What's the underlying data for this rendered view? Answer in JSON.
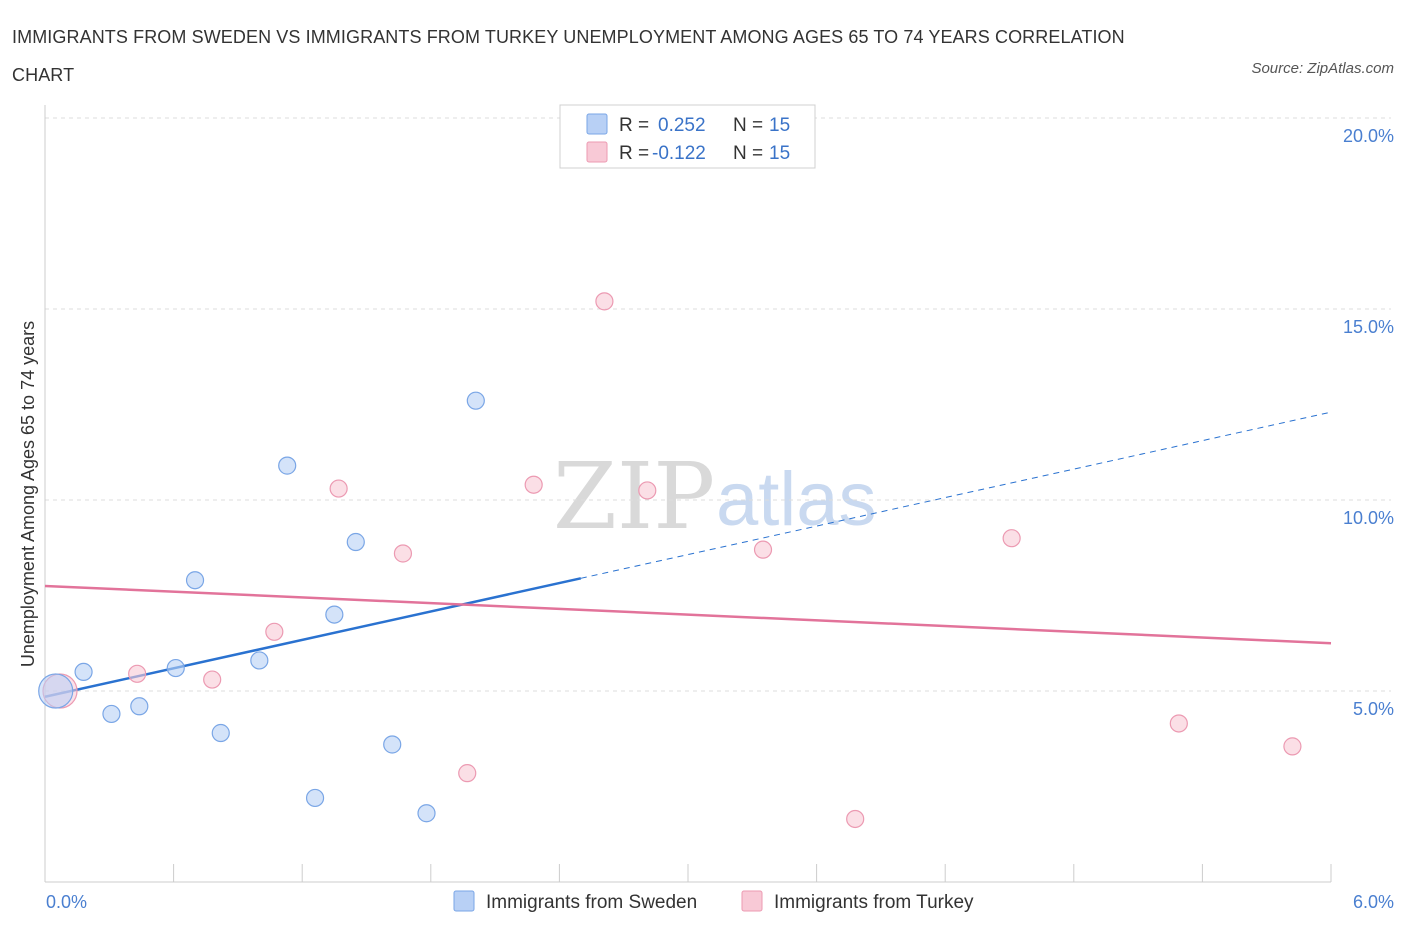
{
  "title": "IMMIGRANTS FROM SWEDEN VS IMMIGRANTS FROM TURKEY UNEMPLOYMENT AMONG AGES 65 TO 74 YEARS CORRELATION CHART",
  "source": "Source: ZipAtlas.com",
  "watermark": {
    "zip": "ZIP",
    "atlas": "atlas"
  },
  "colors": {
    "sweden_fill": "#b8d0f5",
    "sweden_stroke": "#7aa6e6",
    "sweden_line": "#2a72d0",
    "turkey_fill": "#f8c9d6",
    "turkey_stroke": "#ec9ab2",
    "turkey_line": "#e2739a",
    "tick_label": "#4a7fd0",
    "grid": "#dddddd"
  },
  "legend": {
    "rows": [
      {
        "r_label": "R =",
        "r_value": "0.252",
        "n_label": "N =",
        "n_value": "15"
      },
      {
        "r_label": "R =",
        "r_value": "-0.122",
        "n_label": "N =",
        "n_value": "15"
      }
    ]
  },
  "chart_data": {
    "type": "scatter",
    "title": "IMMIGRANTS FROM SWEDEN VS IMMIGRANTS FROM TURKEY UNEMPLOYMENT AMONG AGES 65 TO 74 YEARS CORRELATION CHART",
    "xlabel": "",
    "ylabel": "Unemployment Among Ages 65 to 74 years",
    "xlim": [
      0,
      6
    ],
    "ylim": [
      0,
      20
    ],
    "x_tick_labels": [
      "0.0%",
      "6.0%"
    ],
    "y_ticks": [
      5,
      10,
      15,
      20
    ],
    "y_tick_labels": [
      "5.0%",
      "10.0%",
      "15.0%",
      "20.0%"
    ],
    "grid": true,
    "legend_position": "top-center",
    "series": [
      {
        "name": "Immigrants from Sweden",
        "color": "#7aa6e6",
        "points": [
          {
            "x": 0.05,
            "y": 5.0,
            "big": true
          },
          {
            "x": 0.18,
            "y": 5.5
          },
          {
            "x": 0.31,
            "y": 4.4
          },
          {
            "x": 0.44,
            "y": 4.6
          },
          {
            "x": 0.61,
            "y": 5.6
          },
          {
            "x": 0.7,
            "y": 7.9
          },
          {
            "x": 0.82,
            "y": 3.9
          },
          {
            "x": 1.0,
            "y": 5.8
          },
          {
            "x": 1.13,
            "y": 10.9
          },
          {
            "x": 1.26,
            "y": 2.2
          },
          {
            "x": 1.35,
            "y": 7.0
          },
          {
            "x": 1.45,
            "y": 8.9
          },
          {
            "x": 1.62,
            "y": 3.6
          },
          {
            "x": 1.78,
            "y": 1.8
          },
          {
            "x": 2.01,
            "y": 12.6
          }
        ],
        "trend": {
          "x0": 0.0,
          "y0": 4.85,
          "x_solid_end": 2.5,
          "y_solid_end": 7.95,
          "x1": 6.0,
          "y1": 12.3
        }
      },
      {
        "name": "Immigrants from Turkey",
        "color": "#ec9ab2",
        "points": [
          {
            "x": 0.07,
            "y": 5.0,
            "big": true
          },
          {
            "x": 0.43,
            "y": 5.45
          },
          {
            "x": 0.78,
            "y": 5.3
          },
          {
            "x": 1.07,
            "y": 6.55
          },
          {
            "x": 1.37,
            "y": 10.3
          },
          {
            "x": 1.67,
            "y": 8.6
          },
          {
            "x": 1.97,
            "y": 2.85
          },
          {
            "x": 2.28,
            "y": 10.4
          },
          {
            "x": 2.61,
            "y": 15.2
          },
          {
            "x": 2.81,
            "y": 10.25
          },
          {
            "x": 3.35,
            "y": 8.7
          },
          {
            "x": 3.78,
            "y": 1.65
          },
          {
            "x": 4.51,
            "y": 9.0
          },
          {
            "x": 5.29,
            "y": 4.15
          },
          {
            "x": 5.82,
            "y": 3.55
          }
        ],
        "trend": {
          "x0": 0.0,
          "y0": 7.75,
          "x1": 6.0,
          "y1": 6.25
        }
      }
    ]
  }
}
